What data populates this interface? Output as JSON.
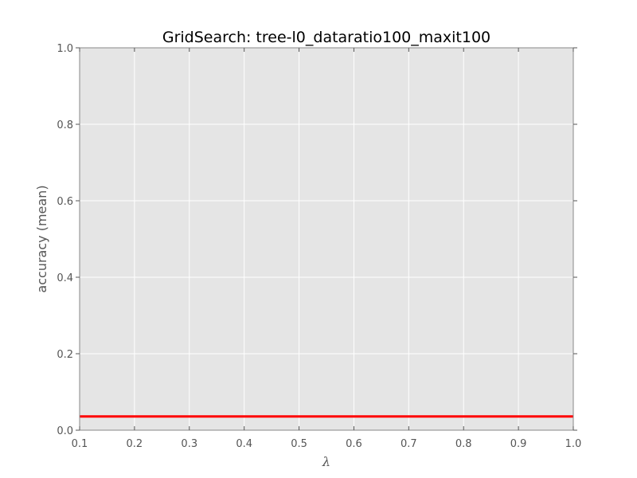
{
  "chart_data": {
    "type": "line",
    "title": "GridSearch: tree-l0_dataratio100_maxit100",
    "xlabel": "λ",
    "ylabel": "accuracy (mean)",
    "xlim": [
      0.1,
      1.0
    ],
    "ylim": [
      0.0,
      1.0
    ],
    "x_ticks": [
      0.1,
      0.2,
      0.3,
      0.4,
      0.5,
      0.6,
      0.7,
      0.8,
      0.9,
      1.0
    ],
    "x_tick_labels": [
      "0.1",
      "0.2",
      "0.3",
      "0.4",
      "0.5",
      "0.6",
      "0.7",
      "0.8",
      "0.9",
      "1.0"
    ],
    "y_ticks": [
      0.0,
      0.2,
      0.4,
      0.6,
      0.8,
      1.0
    ],
    "y_tick_labels": [
      "0.0",
      "0.2",
      "0.4",
      "0.6",
      "0.8",
      "1.0"
    ],
    "grid": true,
    "background_color": "#e5e5e5",
    "grid_color": "#ffffff",
    "series": [
      {
        "color": "#ff0000",
        "x": [
          0.1,
          1.0
        ],
        "y": [
          0.036,
          0.036
        ]
      }
    ]
  }
}
